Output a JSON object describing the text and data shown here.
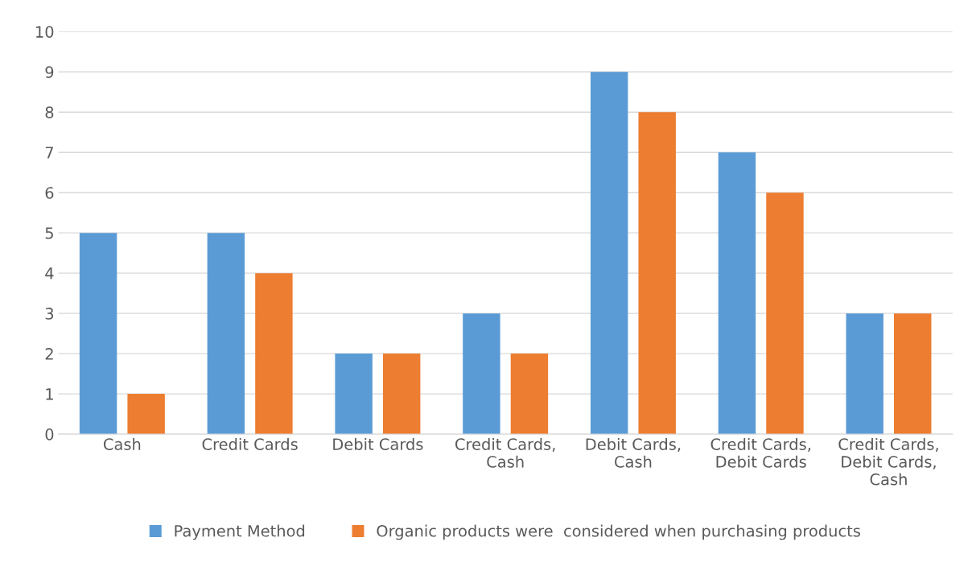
{
  "chart_data": {
    "type": "bar",
    "categories": [
      "Cash",
      "Credit Cards",
      "Debit Cards",
      "Credit Cards,\nCash",
      "Debit Cards,\nCash",
      "Credit Cards,\nDebit Cards",
      "Credit Cards,\nDebit Cards,\nCash"
    ],
    "series": [
      {
        "name": "Payment Method",
        "color": "#5b9bd5",
        "values": [
          5,
          5,
          2,
          3,
          9,
          7,
          3
        ]
      },
      {
        "name": "Organic products were  considered when purchasing products",
        "color": "#ed7d31",
        "values": [
          1,
          4,
          2,
          2,
          8,
          6,
          3
        ]
      }
    ],
    "ylim": [
      0,
      10
    ],
    "yticks": [
      0,
      1,
      2,
      3,
      4,
      5,
      6,
      7,
      8,
      9,
      10
    ],
    "grid": "y",
    "legend": "bottom"
  }
}
